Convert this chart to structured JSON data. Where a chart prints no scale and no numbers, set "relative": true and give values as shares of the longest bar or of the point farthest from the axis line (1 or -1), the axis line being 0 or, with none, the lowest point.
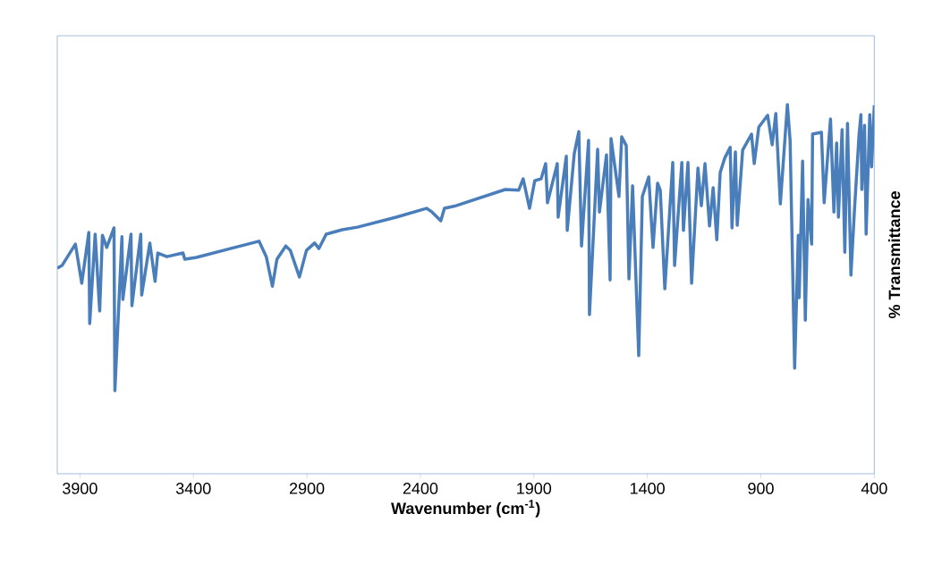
{
  "chart_data": {
    "type": "line",
    "xlabel": "Wavenumber (cm$^{-1}$)",
    "ylabel": "% Transmittance",
    "relative": true,
    "color": "#4a7ebb",
    "xlim": [
      4000,
      400
    ],
    "xticks": [
      3900,
      3400,
      2900,
      2400,
      1900,
      1400,
      900,
      400
    ],
    "x": [
      4000,
      3979,
      3920,
      3892,
      3861,
      3857,
      3833,
      3813,
      3801,
      3782,
      3750,
      3746,
      3715,
      3711,
      3675,
      3671,
      3632,
      3628,
      3592,
      3569,
      3557,
      3517,
      3446,
      3438,
      3387,
      3111,
      3079,
      3052,
      3032,
      2993,
      2973,
      2933,
      2902,
      2866,
      2847,
      2815,
      2744,
      2677,
      2507,
      2373,
      2349,
      2310,
      2294,
      2243,
      2026,
      1967,
      1947,
      1919,
      1896,
      1868,
      1848,
      1840,
      1797,
      1793,
      1757,
      1753,
      1722,
      1702,
      1690,
      1659,
      1655,
      1619,
      1611,
      1580,
      1564,
      1560,
      1525,
      1513,
      1493,
      1481,
      1465,
      1438,
      1422,
      1394,
      1375,
      1355,
      1343,
      1323,
      1288,
      1280,
      1248,
      1241,
      1221,
      1205,
      1177,
      1162,
      1146,
      1126,
      1110,
      1094,
      1079,
      1059,
      1035,
      1027,
      1012,
      1004,
      980,
      941,
      929,
      909,
      870,
      850,
      834,
      814,
      783,
      771,
      751,
      735,
      731,
      716,
      704,
      692,
      676,
      672,
      633,
      621,
      593,
      578,
      566,
      558,
      542,
      530,
      518,
      503,
      487,
      467,
      459,
      455,
      443,
      436,
      420,
      412,
      400
    ],
    "values": [
      0.557,
      0.564,
      0.622,
      0.516,
      0.654,
      0.407,
      0.649,
      0.441,
      0.646,
      0.613,
      0.666,
      0.225,
      0.642,
      0.472,
      0.649,
      0.455,
      0.649,
      0.484,
      0.625,
      0.521,
      0.598,
      0.588,
      0.598,
      0.581,
      0.586,
      0.63,
      0.588,
      0.508,
      0.581,
      0.617,
      0.605,
      0.533,
      0.605,
      0.625,
      0.61,
      0.649,
      0.661,
      0.668,
      0.695,
      0.719,
      0.709,
      0.685,
      0.719,
      0.726,
      0.77,
      0.768,
      0.799,
      0.719,
      0.794,
      0.799,
      0.84,
      0.734,
      0.84,
      0.695,
      0.86,
      0.659,
      0.867,
      0.927,
      0.617,
      0.903,
      0.431,
      0.879,
      0.709,
      0.864,
      0.525,
      0.908,
      0.751,
      0.913,
      0.889,
      0.528,
      0.78,
      0.32,
      0.751,
      0.804,
      0.613,
      0.787,
      0.768,
      0.501,
      0.843,
      0.564,
      0.843,
      0.659,
      0.843,
      0.516,
      0.828,
      0.726,
      0.84,
      0.671,
      0.775,
      0.634,
      0.816,
      0.855,
      0.884,
      0.666,
      0.872,
      0.673,
      0.877,
      0.92,
      0.84,
      0.939,
      0.971,
      0.891,
      0.976,
      0.731,
      1.0,
      0.903,
      0.286,
      0.646,
      0.477,
      0.847,
      0.416,
      0.743,
      0.622,
      0.92,
      0.925,
      0.734,
      0.961,
      0.709,
      0.896,
      0.695,
      0.932,
      0.6,
      0.949,
      0.538,
      0.719,
      0.92,
      0.973,
      0.77,
      0.944,
      0.649,
      0.973,
      0.831,
      0.998
    ]
  }
}
